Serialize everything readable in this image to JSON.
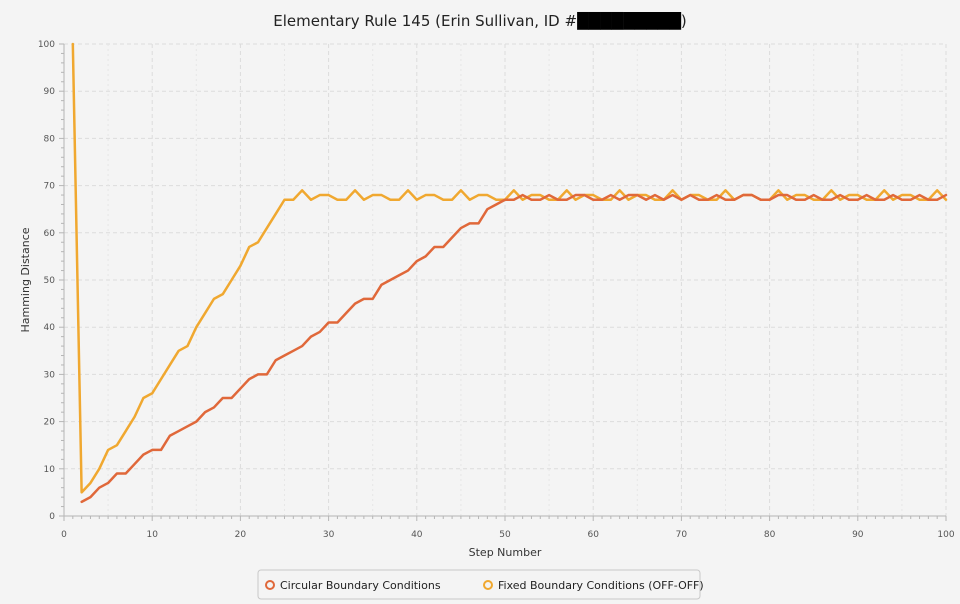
{
  "chart_data": {
    "type": "line",
    "title_prefix": "Elementary Rule 145 (Erin Sullivan, ID #",
    "title_suffix": ")",
    "xlabel": "Step Number",
    "ylabel": "Hamming Distance",
    "xlim": [
      0,
      100
    ],
    "ylim": [
      0,
      100
    ],
    "x_ticks": [
      0,
      10,
      20,
      30,
      40,
      50,
      60,
      70,
      80,
      90,
      100
    ],
    "y_ticks": [
      0,
      10,
      20,
      30,
      40,
      50,
      60,
      70,
      80,
      90,
      100
    ],
    "grid": true,
    "legend_position": "bottom-center",
    "series": [
      {
        "name": "Circular Boundary Conditions",
        "color": "#e0683a",
        "x": [
          2,
          3,
          4,
          5,
          6,
          7,
          8,
          9,
          10,
          11,
          12,
          13,
          14,
          15,
          16,
          17,
          18,
          19,
          20,
          21,
          22,
          23,
          24,
          25,
          26,
          27,
          28,
          29,
          30,
          31,
          32,
          33,
          34,
          35,
          36,
          37,
          38,
          39,
          40,
          41,
          42,
          43,
          44,
          45,
          46,
          47,
          48,
          49,
          50,
          51,
          52,
          53,
          54,
          55,
          56,
          57,
          58,
          59,
          60,
          61,
          62,
          63,
          64,
          65,
          66,
          67,
          68,
          69,
          70,
          71,
          72,
          73,
          74,
          75,
          76,
          77,
          78,
          79,
          80,
          81,
          82,
          83,
          84,
          85,
          86,
          87,
          88,
          89,
          90,
          91,
          92,
          93,
          94,
          95,
          96,
          97,
          98,
          99,
          100
        ],
        "values": [
          3,
          4,
          6,
          7,
          9,
          9,
          11,
          13,
          14,
          14,
          17,
          18,
          19,
          20,
          22,
          23,
          25,
          25,
          27,
          29,
          30,
          30,
          33,
          34,
          35,
          36,
          38,
          39,
          41,
          41,
          43,
          45,
          46,
          46,
          49,
          50,
          51,
          52,
          54,
          55,
          57,
          57,
          59,
          61,
          62,
          62,
          65,
          66,
          67,
          67,
          68,
          67,
          67,
          68,
          67,
          67,
          68,
          68,
          67,
          67,
          68,
          67,
          68,
          68,
          67,
          68,
          67,
          68,
          67,
          68,
          67,
          67,
          68,
          67,
          67,
          68,
          68,
          67,
          67,
          68,
          68,
          67,
          67,
          68,
          67,
          67,
          68,
          67,
          67,
          68,
          67,
          67,
          68,
          67,
          67,
          68,
          67,
          67,
          68
        ]
      },
      {
        "name": "Fixed Boundary Conditions (OFF-OFF)",
        "color": "#f0a830",
        "x": [
          1,
          2,
          3,
          4,
          5,
          6,
          7,
          8,
          9,
          10,
          11,
          12,
          13,
          14,
          15,
          16,
          17,
          18,
          19,
          20,
          21,
          22,
          23,
          24,
          25,
          26,
          27,
          28,
          29,
          30,
          31,
          32,
          33,
          34,
          35,
          36,
          37,
          38,
          39,
          40,
          41,
          42,
          43,
          44,
          45,
          46,
          47,
          48,
          49,
          50,
          51,
          52,
          53,
          54,
          55,
          56,
          57,
          58,
          59,
          60,
          61,
          62,
          63,
          64,
          65,
          66,
          67,
          68,
          69,
          70,
          71,
          72,
          73,
          74,
          75,
          76,
          77,
          78,
          79,
          80,
          81,
          82,
          83,
          84,
          85,
          86,
          87,
          88,
          89,
          90,
          91,
          92,
          93,
          94,
          95,
          96,
          97,
          98,
          99,
          100
        ],
        "values": [
          100,
          5,
          7,
          10,
          14,
          15,
          18,
          21,
          25,
          26,
          29,
          32,
          35,
          36,
          40,
          43,
          46,
          47,
          50,
          53,
          57,
          58,
          61,
          64,
          67,
          67,
          69,
          67,
          68,
          68,
          67,
          67,
          69,
          67,
          68,
          68,
          67,
          67,
          69,
          67,
          68,
          68,
          67,
          67,
          69,
          67,
          68,
          68,
          67,
          67,
          69,
          67,
          68,
          68,
          67,
          67,
          69,
          67,
          68,
          68,
          67,
          67,
          69,
          67,
          68,
          68,
          67,
          67,
          69,
          67,
          68,
          68,
          67,
          67,
          69,
          67,
          68,
          68,
          67,
          67,
          69,
          67,
          68,
          68,
          67,
          67,
          69,
          67,
          68,
          68,
          67,
          67,
          69,
          67,
          68,
          68,
          67,
          67,
          69,
          67
        ]
      }
    ]
  }
}
